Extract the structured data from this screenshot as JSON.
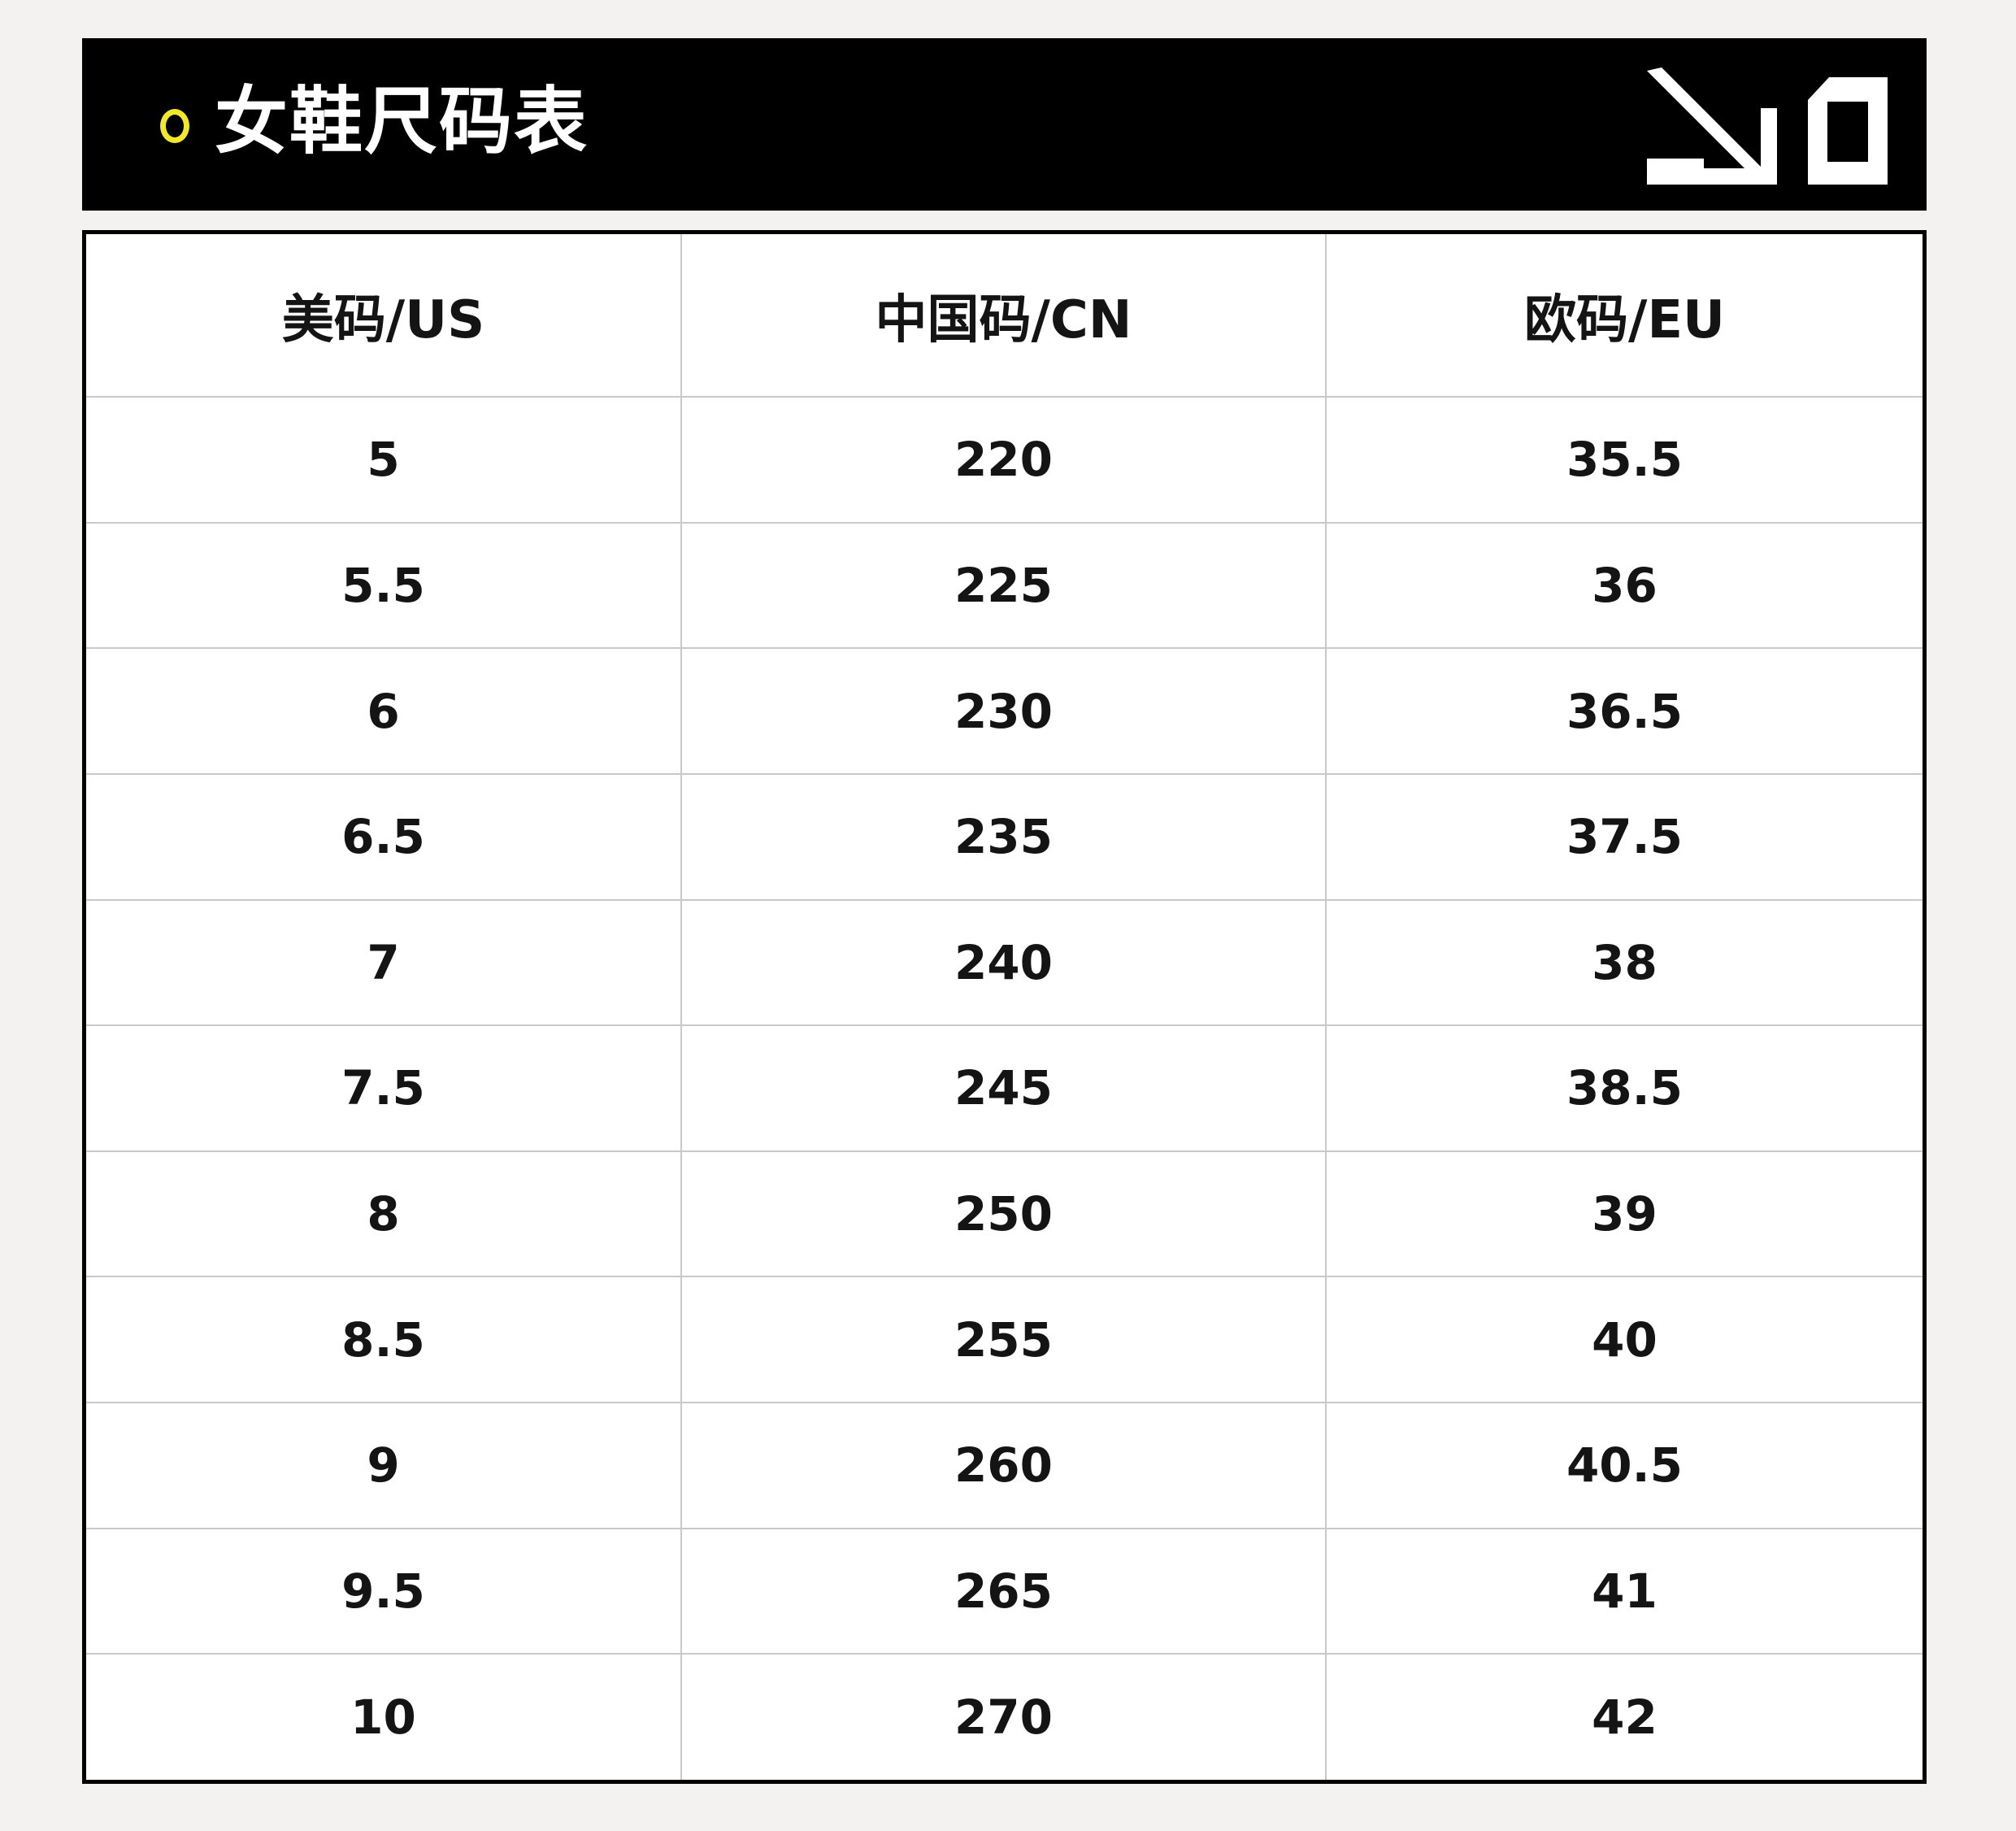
{
  "header": {
    "title": "女鞋尺码表",
    "accent_color": "#f2e82a",
    "bullet_icon": "circle-outline-icon",
    "logo_icon": "brand-arrow-square-logo"
  },
  "table": {
    "columns": [
      "美码/US",
      "中国码/CN",
      "欧码/EU"
    ],
    "rows": [
      [
        "5",
        "220",
        "35.5"
      ],
      [
        "5.5",
        "225",
        "36"
      ],
      [
        "6",
        "230",
        "36.5"
      ],
      [
        "6.5",
        "235",
        "37.5"
      ],
      [
        "7",
        "240",
        "38"
      ],
      [
        "7.5",
        "245",
        "38.5"
      ],
      [
        "8",
        "250",
        "39"
      ],
      [
        "8.5",
        "255",
        "40"
      ],
      [
        "9",
        "260",
        "40.5"
      ],
      [
        "9.5",
        "265",
        "41"
      ],
      [
        "10",
        "270",
        "42"
      ]
    ]
  }
}
